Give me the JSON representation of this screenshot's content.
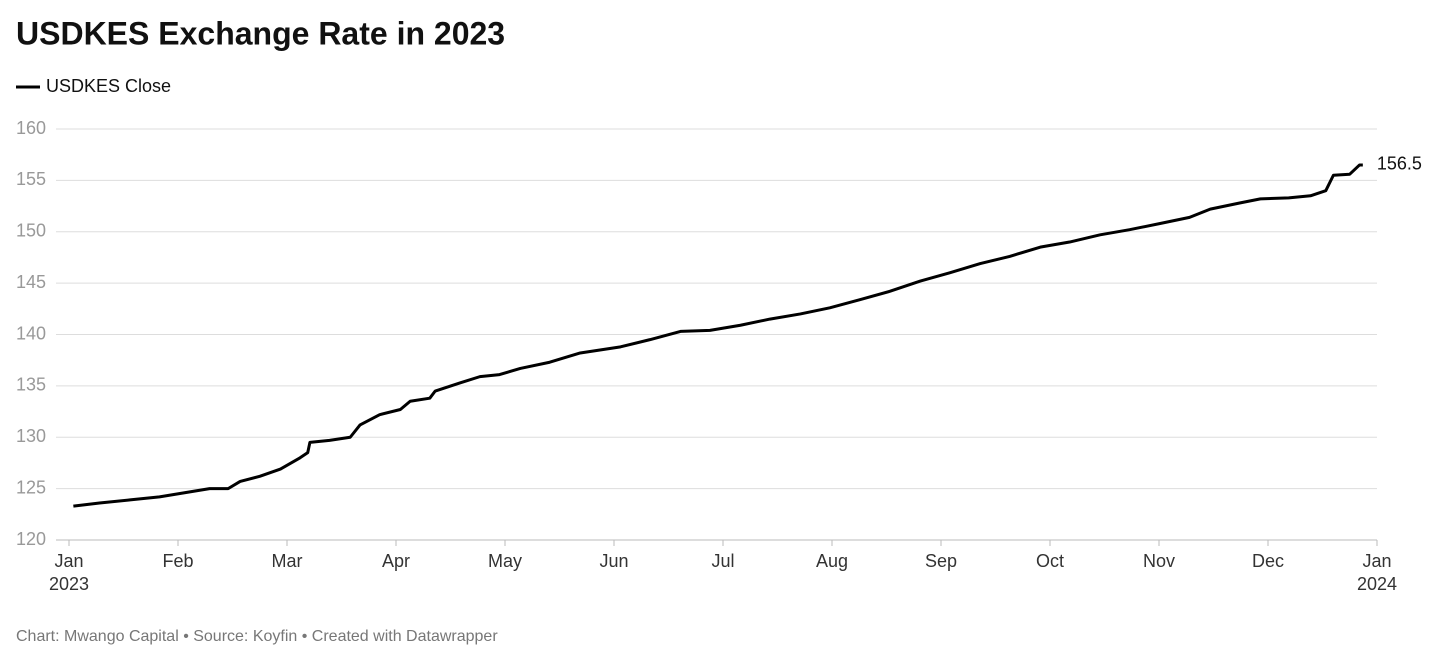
{
  "chart_data": {
    "type": "line",
    "title": "USDKES Exchange Rate in 2023",
    "source": "Chart: Mwango Capital • Source: Koyfin • Created with Datawrapper",
    "x": [
      0.04,
      0.28,
      0.56,
      0.83,
      1.06,
      1.29,
      1.46,
      1.57,
      1.75,
      1.94,
      2.12,
      2.19,
      2.21,
      2.39,
      2.58,
      2.67,
      2.85,
      3.04,
      3.13,
      3.31,
      3.36,
      3.59,
      3.77,
      3.95,
      4.14,
      4.41,
      4.69,
      5.06,
      5.33,
      5.61,
      5.88,
      6.16,
      6.43,
      6.71,
      6.98,
      7.26,
      7.53,
      7.81,
      8.08,
      8.36,
      8.63,
      8.91,
      9.18,
      9.46,
      9.73,
      10.01,
      10.28,
      10.47,
      10.74,
      10.93,
      11.19,
      11.39,
      11.53,
      11.6,
      11.75,
      11.84,
      11.87
    ],
    "series": [
      {
        "name": "USDKES Close",
        "color": "#000000",
        "values": [
          123.3,
          123.6,
          123.9,
          124.2,
          124.6,
          125.0,
          125.0,
          125.7,
          126.2,
          126.9,
          128.0,
          128.5,
          129.5,
          129.7,
          130.0,
          131.2,
          132.2,
          132.7,
          133.5,
          133.8,
          134.5,
          135.3,
          135.9,
          136.1,
          136.7,
          137.3,
          138.2,
          138.8,
          139.5,
          140.3,
          140.4,
          140.9,
          141.5,
          142.0,
          142.6,
          143.4,
          144.2,
          145.2,
          146.0,
          146.9,
          147.6,
          148.5,
          149.0,
          149.7,
          150.2,
          150.8,
          151.4,
          152.2,
          152.8,
          153.2,
          153.3,
          153.5,
          154.0,
          155.5,
          155.6,
          156.5,
          156.5
        ]
      }
    ],
    "xlim": [
      0,
      12
    ],
    "xticks": [
      {
        "value": 0,
        "label": "Jan\n2023"
      },
      {
        "value": 1,
        "label": "Feb"
      },
      {
        "value": 2,
        "label": "Mar"
      },
      {
        "value": 3,
        "label": "Apr"
      },
      {
        "value": 4,
        "label": "May"
      },
      {
        "value": 5,
        "label": "Jun"
      },
      {
        "value": 6,
        "label": "Jul"
      },
      {
        "value": 7,
        "label": "Aug"
      },
      {
        "value": 8,
        "label": "Sep"
      },
      {
        "value": 9,
        "label": "Oct"
      },
      {
        "value": 10,
        "label": "Nov"
      },
      {
        "value": 11,
        "label": "Dec"
      },
      {
        "value": 12,
        "label": "Jan\n2024"
      }
    ],
    "ylim": [
      120,
      160
    ],
    "yticks": [
      120,
      125,
      130,
      135,
      140,
      145,
      150,
      155,
      160
    ],
    "grid": true,
    "legend": "top-left"
  }
}
